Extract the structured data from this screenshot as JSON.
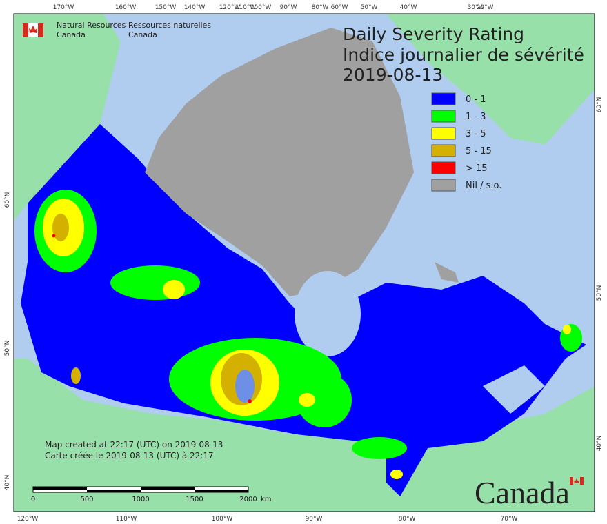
{
  "header": {
    "agency_en": [
      "Natural Resources",
      "Canada"
    ],
    "agency_fr": [
      "Ressources naturelles",
      "Canada"
    ]
  },
  "title": {
    "en": "Daily Severity Rating",
    "fr": "Indice journalier de sévérité",
    "date": "2019-08-13"
  },
  "legend": [
    {
      "label": "0 - 1",
      "color": "#0000ff"
    },
    {
      "label": "1 - 3",
      "color": "#00ff00"
    },
    {
      "label": "3 - 5",
      "color": "#ffff00"
    },
    {
      "label": "5 - 15",
      "color": "#d4b000"
    },
    {
      "label": "> 15",
      "color": "#ff0000"
    },
    {
      "label": "Nil / s.o.",
      "color": "#a0a0a0"
    }
  ],
  "graticule": {
    "top": [
      "170°W",
      "160°W",
      "150°W",
      "140°W",
      "120°W",
      "110°W",
      "100°W",
      "90°W",
      "80°W",
      "60°W",
      "50°W",
      "40°W",
      "30°W",
      "20°W"
    ],
    "bottom": [
      "120°W",
      "110°W",
      "100°W",
      "90°W",
      "80°W",
      "70°W"
    ],
    "left": [
      "60°N",
      "50°N",
      "40°N"
    ],
    "right": [
      "60°N",
      "50°N",
      "40°N"
    ]
  },
  "credits": {
    "en": "Map created at 22:17 (UTC) on 2019-08-13",
    "fr": "Carte créée le 2019-08-13 (UTC) à 22:17"
  },
  "scale_bar": {
    "ticks": [
      "0",
      "500",
      "1000",
      "1500",
      "2000"
    ],
    "unit": "km"
  },
  "wordmark": "Canada"
}
